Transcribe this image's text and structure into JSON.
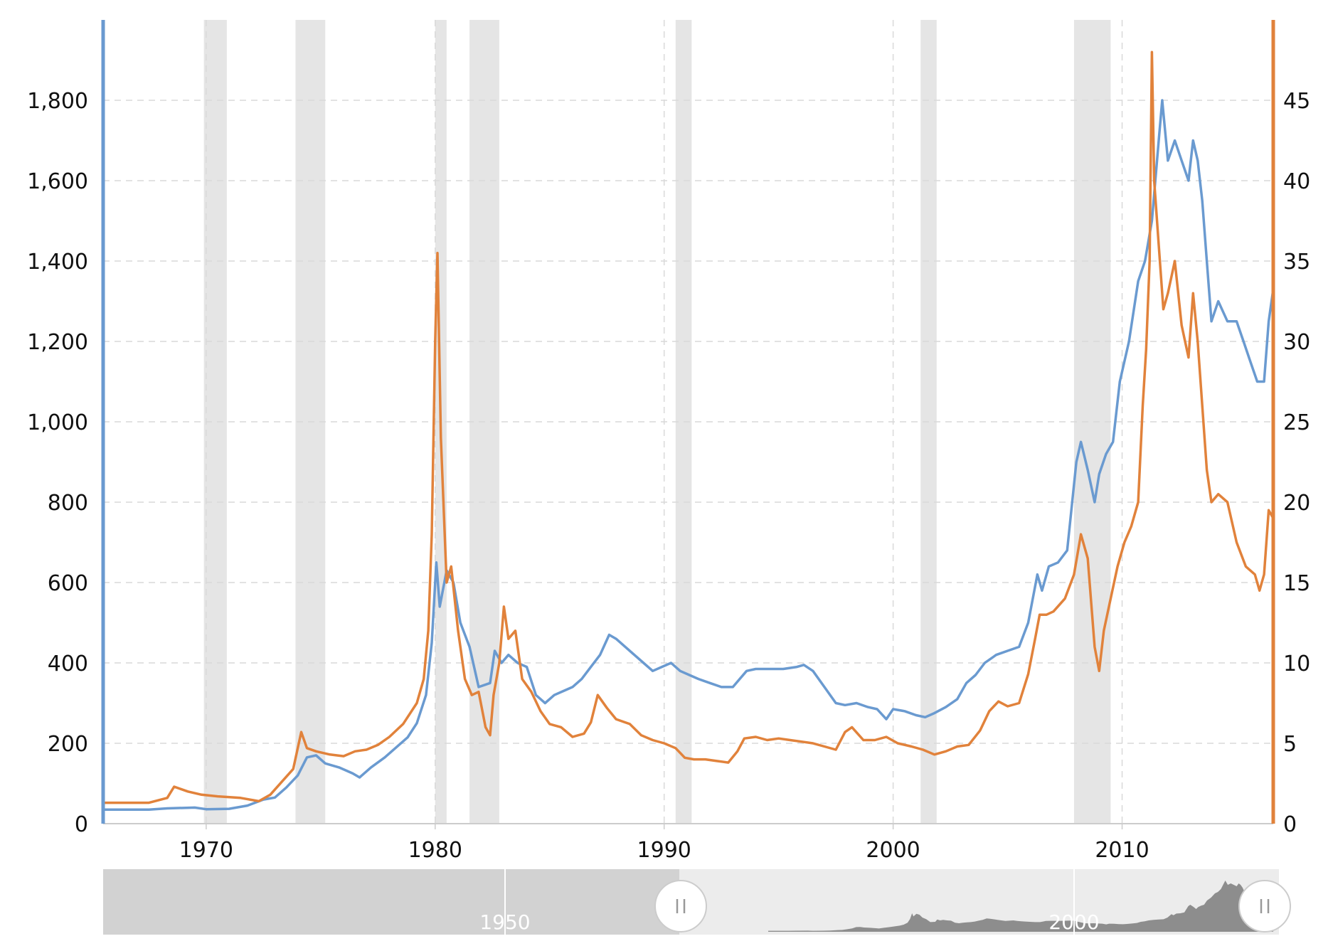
{
  "chart_data": {
    "type": "line",
    "title": "",
    "xlabel": "",
    "ylabel": "",
    "x_range": [
      1965.5,
      2016.6
    ],
    "x_ticks": [
      "1970",
      "1980",
      "1990",
      "2000",
      "2010"
    ],
    "y_left": {
      "range": [
        0,
        2000
      ],
      "ticks": [
        "0",
        "200",
        "400",
        "600",
        "800",
        "1,000",
        "1,200",
        "1,400",
        "1,600",
        "1,800"
      ]
    },
    "y_right": {
      "range": [
        0,
        50
      ],
      "ticks": [
        "0",
        "5",
        "10",
        "15",
        "20",
        "25",
        "30",
        "35",
        "40",
        "45"
      ]
    },
    "grid": true,
    "legend": "none",
    "recessions": [
      [
        1969.9,
        1970.9
      ],
      [
        1973.9,
        1975.2
      ],
      [
        1980.0,
        1980.5
      ],
      [
        1981.5,
        1982.8
      ],
      [
        1990.5,
        1991.2
      ],
      [
        2001.2,
        2001.9
      ],
      [
        2007.9,
        2009.5
      ]
    ],
    "series": [
      {
        "axis": "left",
        "color": "#6a9ad0",
        "x": [
          1965.5,
          1967.5,
          1968.3,
          1969.5,
          1970.0,
          1971.0,
          1971.8,
          1972.5,
          1973.0,
          1973.5,
          1974.0,
          1974.4,
          1974.8,
          1975.2,
          1975.8,
          1976.4,
          1976.7,
          1977.2,
          1977.8,
          1978.3,
          1978.8,
          1979.2,
          1979.6,
          1979.85,
          1980.05,
          1980.2,
          1980.5,
          1980.8,
          1981.1,
          1981.5,
          1981.9,
          1982.4,
          1982.6,
          1982.9,
          1983.2,
          1983.6,
          1984.0,
          1984.4,
          1984.8,
          1985.2,
          1985.6,
          1986.0,
          1986.4,
          1986.8,
          1987.2,
          1987.6,
          1987.9,
          1988.3,
          1988.7,
          1989.1,
          1989.5,
          1989.9,
          1990.3,
          1990.7,
          1991.1,
          1991.5,
          1992.0,
          1992.5,
          1993.0,
          1993.3,
          1993.6,
          1994.0,
          1994.6,
          1995.2,
          1995.8,
          1996.1,
          1996.5,
          1997.0,
          1997.5,
          1997.9,
          1998.4,
          1998.9,
          1999.3,
          1999.7,
          2000.0,
          2000.5,
          2001.0,
          2001.4,
          2001.8,
          2002.3,
          2002.8,
          2003.2,
          2003.6,
          2004.0,
          2004.5,
          2005.0,
          2005.5,
          2005.9,
          2006.3,
          2006.5,
          2006.8,
          2007.2,
          2007.6,
          2008.0,
          2008.2,
          2008.5,
          2008.8,
          2009.0,
          2009.3,
          2009.6,
          2009.9,
          2010.3,
          2010.7,
          2011.0,
          2011.3,
          2011.6,
          2011.75,
          2012.0,
          2012.3,
          2012.6,
          2012.9,
          2013.1,
          2013.3,
          2013.5,
          2013.7,
          2013.9,
          2014.2,
          2014.6,
          2015.0,
          2015.3,
          2015.6,
          2015.9,
          2016.2,
          2016.4,
          2016.6
        ],
        "y": [
          35,
          35,
          38,
          40,
          36,
          37,
          45,
          60,
          65,
          90,
          120,
          165,
          170,
          150,
          140,
          125,
          115,
          140,
          165,
          190,
          215,
          250,
          320,
          450,
          650,
          540,
          630,
          600,
          500,
          440,
          340,
          350,
          430,
          400,
          420,
          400,
          390,
          320,
          300,
          320,
          330,
          340,
          360,
          390,
          420,
          470,
          460,
          440,
          420,
          400,
          380,
          390,
          400,
          380,
          370,
          360,
          350,
          340,
          340,
          360,
          380,
          385,
          385,
          385,
          390,
          395,
          380,
          340,
          300,
          295,
          300,
          290,
          285,
          260,
          285,
          280,
          270,
          265,
          275,
          290,
          310,
          350,
          370,
          400,
          420,
          430,
          440,
          500,
          620,
          580,
          640,
          650,
          680,
          900,
          950,
          880,
          800,
          870,
          920,
          950,
          1100,
          1200,
          1350,
          1400,
          1500,
          1700,
          1800,
          1650,
          1700,
          1650,
          1600,
          1700,
          1650,
          1550,
          1400,
          1250,
          1300,
          1250,
          1250,
          1200,
          1150,
          1100,
          1100,
          1250,
          1330
        ]
      },
      {
        "axis": "right",
        "color": "#e1823b",
        "x": [
          1965.5,
          1967.5,
          1968.3,
          1968.6,
          1969.2,
          1969.8,
          1970.5,
          1971.5,
          1972.3,
          1972.8,
          1973.3,
          1973.8,
          1974.15,
          1974.4,
          1974.8,
          1975.4,
          1976.0,
          1976.5,
          1977.0,
          1977.5,
          1978.0,
          1978.6,
          1979.2,
          1979.5,
          1979.7,
          1979.85,
          1980.0,
          1980.1,
          1980.25,
          1980.5,
          1980.7,
          1981.0,
          1981.3,
          1981.6,
          1981.9,
          1982.2,
          1982.4,
          1982.55,
          1982.8,
          1983.0,
          1983.2,
          1983.5,
          1983.8,
          1984.2,
          1984.6,
          1985.0,
          1985.5,
          1986.0,
          1986.5,
          1986.8,
          1987.1,
          1987.5,
          1987.9,
          1988.5,
          1989.0,
          1989.5,
          1990.0,
          1990.5,
          1990.9,
          1991.3,
          1991.8,
          1992.3,
          1992.8,
          1993.2,
          1993.5,
          1994.0,
          1994.5,
          1995.0,
          1995.5,
          1996.0,
          1996.5,
          1997.0,
          1997.5,
          1997.9,
          1998.2,
          1998.7,
          1999.2,
          1999.7,
          2000.2,
          2000.8,
          2001.3,
          2001.8,
          2002.3,
          2002.8,
          2003.3,
          2003.8,
          2004.2,
          2004.6,
          2005.0,
          2005.5,
          2005.9,
          2006.2,
          2006.4,
          2006.7,
          2007.0,
          2007.5,
          2007.9,
          2008.2,
          2008.5,
          2008.8,
          2009.0,
          2009.2,
          2009.5,
          2009.8,
          2010.1,
          2010.4,
          2010.7,
          2010.9,
          2011.05,
          2011.2,
          2011.3,
          2011.4,
          2011.6,
          2011.8,
          2012.0,
          2012.3,
          2012.6,
          2012.9,
          2013.1,
          2013.3,
          2013.5,
          2013.7,
          2013.9,
          2014.2,
          2014.6,
          2015.0,
          2015.4,
          2015.8,
          2016.0,
          2016.2,
          2016.4,
          2016.6
        ],
        "y": [
          1.3,
          1.3,
          1.6,
          2.3,
          2.0,
          1.8,
          1.7,
          1.6,
          1.4,
          1.8,
          2.6,
          3.4,
          5.7,
          4.7,
          4.5,
          4.3,
          4.2,
          4.5,
          4.6,
          4.9,
          5.4,
          6.2,
          7.5,
          9.0,
          12.0,
          18.0,
          30.0,
          35.5,
          24.0,
          15.0,
          16.0,
          12.0,
          9.0,
          8.0,
          8.2,
          6.0,
          5.5,
          8.0,
          10.0,
          13.5,
          11.5,
          12.0,
          9.0,
          8.2,
          7.0,
          6.2,
          6.0,
          5.4,
          5.6,
          6.3,
          8.0,
          7.2,
          6.5,
          6.2,
          5.5,
          5.2,
          5.0,
          4.7,
          4.1,
          4.0,
          4.0,
          3.9,
          3.8,
          4.5,
          5.3,
          5.4,
          5.2,
          5.3,
          5.2,
          5.1,
          5.0,
          4.8,
          4.6,
          5.7,
          6.0,
          5.2,
          5.2,
          5.4,
          5.0,
          4.8,
          4.6,
          4.3,
          4.5,
          4.8,
          4.9,
          5.8,
          7.0,
          7.6,
          7.3,
          7.5,
          9.3,
          11.5,
          13.0,
          13.0,
          13.2,
          14.0,
          15.5,
          18.0,
          16.5,
          11.0,
          9.5,
          12.0,
          14.0,
          16.0,
          17.5,
          18.5,
          20.0,
          26.0,
          29.5,
          35.0,
          48.0,
          40.0,
          36.0,
          32.0,
          33.0,
          35.0,
          31.0,
          29.0,
          33.0,
          30.0,
          26.0,
          22.0,
          20.0,
          20.5,
          20.0,
          17.5,
          16.0,
          15.5,
          14.5,
          15.5,
          19.5,
          19.0
        ]
      }
    ]
  },
  "navigator": {
    "labels": [
      "1950",
      "2000"
    ]
  }
}
